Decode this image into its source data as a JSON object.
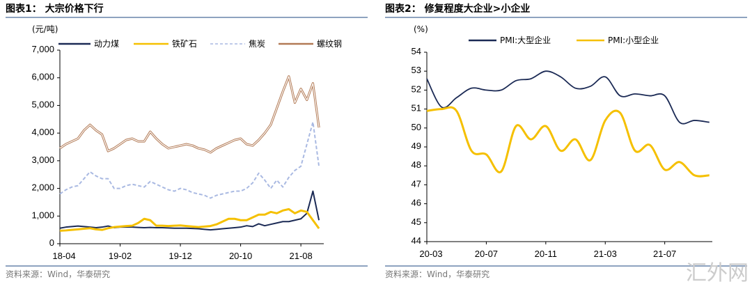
{
  "chart_data": [
    {
      "type": "line",
      "title": "图表1：  大宗价格下行",
      "unit": "(元/吨)",
      "ylabel": "元/吨",
      "ylim": [
        0,
        7000
      ],
      "yticks": [
        "0",
        "1,000",
        "2,000",
        "3,000",
        "4,000",
        "5,000",
        "6,000",
        "7,000"
      ],
      "ytick_values": [
        0,
        1000,
        2000,
        3000,
        4000,
        5000,
        6000,
        7000
      ],
      "xticks": [
        "18-04",
        "19-02",
        "19-12",
        "20-10",
        "21-08"
      ],
      "xtick_index": [
        0,
        10,
        20,
        30,
        40
      ],
      "x_start": "2018-04",
      "x_freq": "monthly (approx.)",
      "legend_position": "top",
      "series": [
        {
          "name": "动力煤",
          "color": "#1b2a55",
          "style": "solid",
          "values": [
            560,
            600,
            620,
            640,
            620,
            600,
            580,
            600,
            640,
            580,
            600,
            600,
            600,
            590,
            580,
            590,
            580,
            580,
            570,
            560,
            560,
            560,
            550,
            540,
            520,
            500,
            520,
            540,
            560,
            580,
            600,
            650,
            620,
            720,
            650,
            700,
            750,
            800,
            800,
            850,
            900,
            1100,
            1900,
            850
          ]
        },
        {
          "name": "铁矿石",
          "color": "#f5c000",
          "style": "solid",
          "values": [
            470,
            480,
            500,
            520,
            540,
            560,
            520,
            500,
            560,
            600,
            620,
            640,
            650,
            750,
            900,
            850,
            650,
            650,
            640,
            650,
            660,
            640,
            620,
            600,
            620,
            640,
            700,
            800,
            900,
            900,
            850,
            850,
            950,
            1050,
            1050,
            1150,
            1100,
            1200,
            1250,
            1100,
            1200,
            1150,
            850,
            550
          ]
        },
        {
          "name": "焦炭",
          "color": "#a9b9e2",
          "style": "dashed",
          "values": [
            1800,
            1950,
            2050,
            2100,
            2350,
            2600,
            2450,
            2350,
            2350,
            2000,
            2000,
            2100,
            2150,
            2100,
            2050,
            2250,
            2150,
            2050,
            1950,
            1900,
            2000,
            1950,
            1850,
            1800,
            1750,
            1650,
            1750,
            1800,
            1850,
            1900,
            1900,
            2000,
            2200,
            2550,
            2300,
            2000,
            2300,
            2050,
            2400,
            2650,
            2800,
            3600,
            4400,
            2800
          ]
        },
        {
          "name": "螺纹钢",
          "color": "#b27a55",
          "style": "outlined",
          "values": [
            3450,
            3600,
            3700,
            3800,
            4100,
            4300,
            4100,
            3950,
            3350,
            3450,
            3600,
            3750,
            3800,
            3700,
            3700,
            4050,
            3800,
            3600,
            3450,
            3500,
            3550,
            3600,
            3550,
            3450,
            3400,
            3300,
            3450,
            3550,
            3650,
            3750,
            3800,
            3600,
            3550,
            3750,
            4000,
            4300,
            4900,
            5500,
            6050,
            5100,
            5600,
            5200,
            5800,
            4200
          ]
        }
      ],
      "source": "资料来源：Wind，华泰研究"
    },
    {
      "type": "line",
      "title": "图表2：  修复程度大企业>小企业",
      "unit": "(%)",
      "ylabel": "%",
      "ylim": [
        44,
        54
      ],
      "yticks": [
        "44",
        "45",
        "46",
        "47",
        "48",
        "49",
        "50",
        "51",
        "52",
        "53",
        "54"
      ],
      "ytick_values": [
        44,
        45,
        46,
        47,
        48,
        49,
        50,
        51,
        52,
        53,
        54
      ],
      "xticks": [
        "20-03",
        "20-07",
        "20-11",
        "21-03",
        "21-07"
      ],
      "xtick_index": [
        0,
        4,
        8,
        12,
        16
      ],
      "x_start": "2020-03",
      "x_freq": "monthly",
      "legend_position": "top",
      "series": [
        {
          "name": "PMI:大型企业",
          "color": "#1b2a55",
          "values": [
            52.6,
            51.1,
            51.6,
            52.1,
            52.0,
            52.0,
            52.5,
            52.6,
            53.0,
            52.7,
            52.1,
            52.2,
            52.7,
            51.7,
            51.8,
            51.7,
            51.7,
            50.3,
            50.4,
            50.3
          ]
        },
        {
          "name": "PMI:小型企业",
          "color": "#f5c000",
          "values": [
            50.9,
            51.0,
            50.9,
            48.8,
            48.6,
            47.7,
            50.1,
            49.4,
            50.1,
            48.8,
            49.4,
            48.3,
            50.4,
            50.8,
            48.8,
            49.1,
            47.8,
            48.2,
            47.5,
            47.5
          ]
        }
      ],
      "source": "资料来源：Wind，华泰研究"
    }
  ],
  "watermark": "汇外网"
}
